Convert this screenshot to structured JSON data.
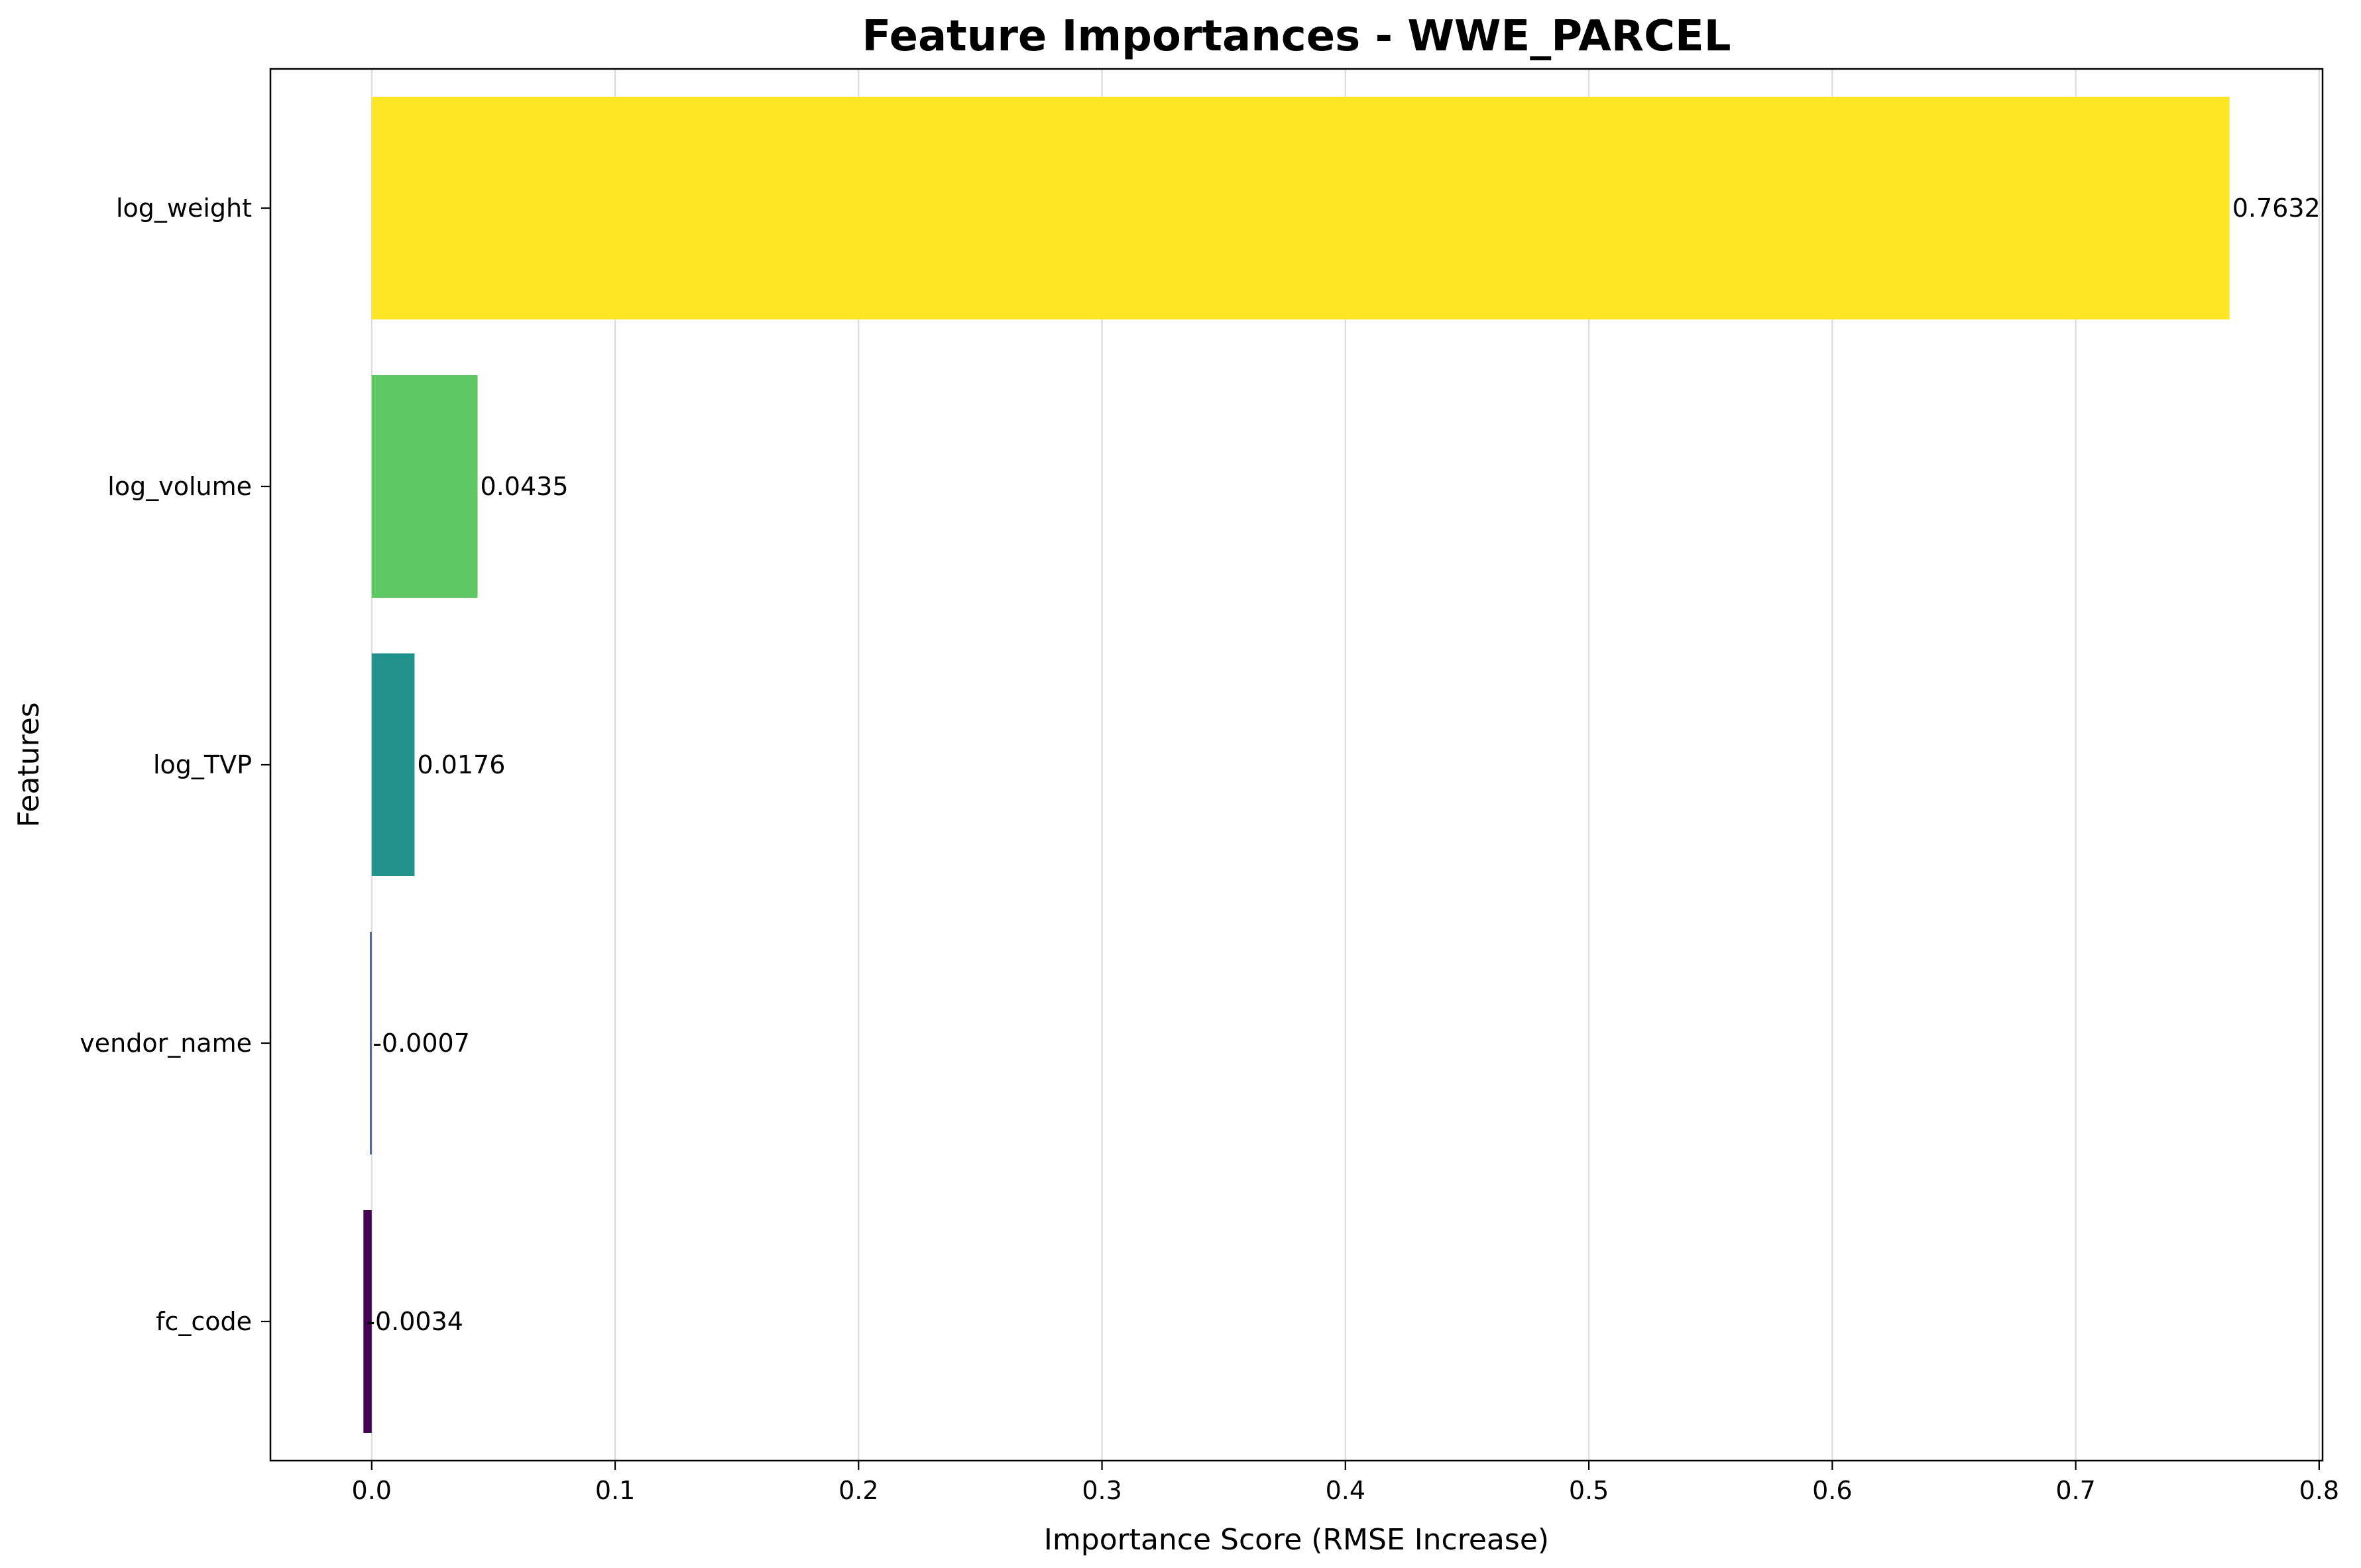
{
  "chart_data": {
    "type": "bar",
    "orientation": "horizontal",
    "title": "Feature Importances - WWE_PARCEL",
    "xlabel": "Importance Score (RMSE Increase)",
    "ylabel": "Features",
    "categories": [
      "log_weight",
      "log_volume",
      "log_TVP",
      "vendor_name",
      "fc_code"
    ],
    "values": [
      0.7632,
      0.0435,
      0.0176,
      -0.0007,
      -0.0034
    ],
    "value_labels": [
      "0.7632",
      "0.0435",
      "0.0176",
      "-0.0007",
      "-0.0034"
    ],
    "colors": [
      "#fde725",
      "#5ec962",
      "#21918c",
      "#3b528b",
      "#440154"
    ],
    "xlim": [
      -0.0416,
      0.8014
    ],
    "xticks": [
      0.0,
      0.1,
      0.2,
      0.3,
      0.4,
      0.5,
      0.6,
      0.7,
      0.8
    ],
    "xtick_labels": [
      "0.0",
      "0.1",
      "0.2",
      "0.3",
      "0.4",
      "0.5",
      "0.6",
      "0.7",
      "0.8"
    ],
    "grid": {
      "x": true,
      "y": false
    },
    "legend": "none"
  }
}
